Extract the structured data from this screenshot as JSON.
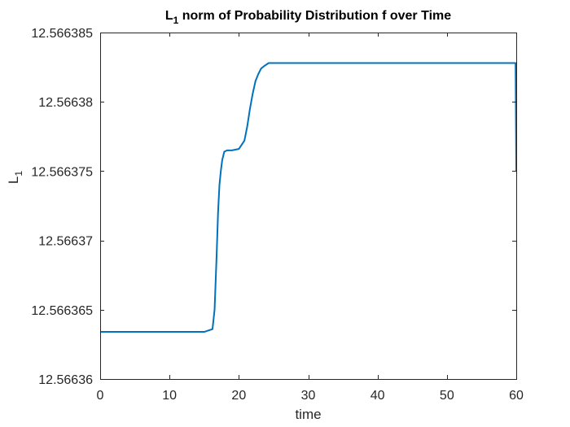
{
  "chart_data": {
    "type": "line",
    "title": "L",
    "title_sub": "1",
    "title_rest": " norm of Probability Distribution f over Time",
    "xlabel": "time",
    "ylabel": "L",
    "ylabel_sub": "1",
    "xlim": [
      0,
      60
    ],
    "ylim": [
      12.56636,
      12.566385
    ],
    "xticks": [
      0,
      10,
      20,
      30,
      40,
      50,
      60
    ],
    "yticks": [
      12.56636,
      12.566365,
      12.56637,
      12.566375,
      12.56638,
      12.566385
    ],
    "xtick_labels": [
      "0",
      "10",
      "20",
      "30",
      "40",
      "50",
      "60"
    ],
    "ytick_labels": [
      "12.56636",
      "12.566365",
      "12.56637",
      "12.566375",
      "12.56638",
      "12.566385"
    ],
    "grid": false,
    "line_color": "#0072BD",
    "series": [
      {
        "x": [
          0,
          5,
          10,
          15,
          16.2,
          16.5,
          16.8,
          17.0,
          17.2,
          17.4,
          17.6,
          17.9,
          18.3,
          19.0,
          20.0,
          20.8,
          21.2,
          21.6,
          22.0,
          22.4,
          22.8,
          23.2,
          23.7,
          24.3,
          25.0,
          30,
          40,
          50,
          59.9,
          60.0
        ],
        "y": [
          12.5663634,
          12.5663634,
          12.5663634,
          12.5663634,
          12.5663636,
          12.566365,
          12.566369,
          12.566372,
          12.566374,
          12.566375,
          12.5663758,
          12.5663764,
          12.5663765,
          12.5663765,
          12.5663766,
          12.5663772,
          12.5663782,
          12.5663795,
          12.5663806,
          12.5663815,
          12.566382,
          12.5663824,
          12.5663826,
          12.5663828,
          12.5663828,
          12.5663828,
          12.5663828,
          12.5663828,
          12.5663828,
          12.566375
        ]
      }
    ]
  }
}
